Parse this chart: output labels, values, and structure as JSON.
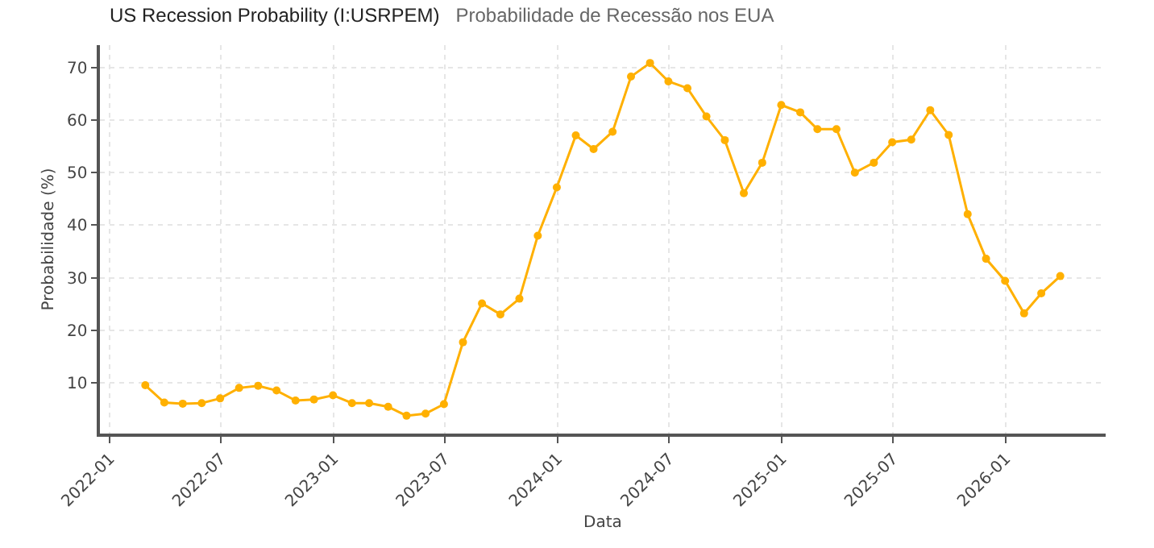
{
  "chart_data": {
    "type": "line",
    "title": "US Recession Probability (I:USRPEM)",
    "subtitle": "Probabilidade de Recessão nos EUA",
    "xlabel": "Data",
    "ylabel": "Probabilidade (%)",
    "x": [
      "2022-02-28",
      "2022-03-31",
      "2022-04-30",
      "2022-05-31",
      "2022-06-30",
      "2022-07-31",
      "2022-08-31",
      "2022-09-30",
      "2022-10-31",
      "2022-11-30",
      "2022-12-31",
      "2023-01-31",
      "2023-02-28",
      "2023-03-31",
      "2023-04-30",
      "2023-05-31",
      "2023-06-30",
      "2023-07-31",
      "2023-08-31",
      "2023-09-30",
      "2023-10-31",
      "2023-11-30",
      "2023-12-31",
      "2024-01-31",
      "2024-02-29",
      "2024-03-31",
      "2024-04-30",
      "2024-05-31",
      "2024-06-30",
      "2024-07-31",
      "2024-08-31",
      "2024-09-30",
      "2024-10-31",
      "2024-11-30",
      "2024-12-31",
      "2025-01-31",
      "2025-02-28",
      "2025-03-31",
      "2025-04-30",
      "2025-05-31",
      "2025-06-30",
      "2025-07-31",
      "2025-08-31",
      "2025-09-30",
      "2025-10-31",
      "2025-11-30",
      "2025-12-31",
      "2026-01-31",
      "2026-02-28",
      "2026-03-31"
    ],
    "series": [
      {
        "color": "#ffb000",
        "values": [
          9.5,
          6.2,
          6.0,
          6.1,
          7.0,
          9.0,
          9.4,
          8.5,
          6.6,
          6.8,
          7.6,
          6.1,
          6.1,
          5.4,
          3.7,
          4.1,
          5.9,
          17.7,
          25.1,
          23.0,
          26.0,
          38.0,
          47.2,
          57.1,
          54.5,
          57.8,
          68.3,
          70.9,
          67.4,
          66.1,
          60.7,
          56.2,
          46.1,
          51.9,
          62.9,
          61.5,
          58.3,
          58.3,
          50.0,
          51.9,
          55.8,
          56.3,
          61.9,
          57.2,
          42.1,
          33.6,
          29.4,
          23.2,
          27.0,
          30.3
        ]
      }
    ],
    "xlim": [
      "2021-12-16",
      "2026-06-13"
    ],
    "xticks": [
      "2022-01",
      "2022-07",
      "2023-01",
      "2023-07",
      "2024-01",
      "2024-07",
      "2025-01",
      "2025-07",
      "2026-01"
    ],
    "ylim": [
      0.3,
      74.3
    ],
    "yticks": [
      10,
      20,
      30,
      40,
      50,
      60,
      70
    ],
    "grid": true,
    "marker": "circle",
    "line_style": "solid"
  }
}
